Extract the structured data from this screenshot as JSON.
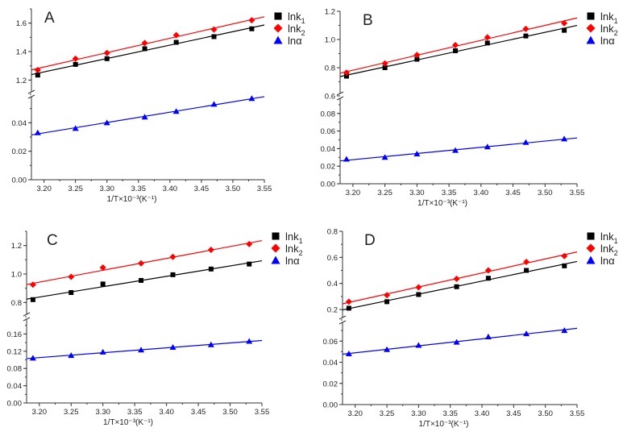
{
  "chart_data": [
    {
      "panel": "A",
      "type": "scatter",
      "xlabel": "1/T×10⁻³(K⁻¹)",
      "xlim": [
        3.18,
        3.55
      ],
      "xticks": [
        "3.20",
        "3.25",
        "3.30",
        "3.35",
        "3.40",
        "3.45",
        "3.50",
        "3.55"
      ],
      "y_break": true,
      "ylim_lower": [
        0,
        0.06
      ],
      "yticks_lower": [
        "0.00",
        "0.02",
        "0.04"
      ],
      "ylim_upper": [
        1.1,
        1.7
      ],
      "yticks_upper": [
        "1.2",
        "1.4",
        "1.6"
      ],
      "x": [
        3.19,
        3.25,
        3.3,
        3.36,
        3.41,
        3.47,
        3.53
      ],
      "series": [
        {
          "name": "lnk1",
          "label": "lnk",
          "sub": "1",
          "color": "#000000",
          "marker": "square",
          "segment": "upper",
          "values": [
            1.235,
            1.31,
            1.35,
            1.42,
            1.465,
            1.505,
            1.56
          ]
        },
        {
          "name": "lnk2",
          "label": "lnk",
          "sub": "2",
          "color": "#ff0000",
          "marker": "diamond",
          "segment": "upper",
          "values": [
            1.27,
            1.35,
            1.39,
            1.46,
            1.515,
            1.555,
            1.62
          ]
        },
        {
          "name": "lnα",
          "label": "lnα",
          "sub": "",
          "color": "#0000ff",
          "marker": "triangle",
          "segment": "lower",
          "values": [
            0.033,
            0.036,
            0.04,
            0.044,
            0.048,
            0.053,
            0.057
          ]
        }
      ],
      "fit": "linear",
      "legend": "right"
    },
    {
      "panel": "B",
      "type": "scatter",
      "xlabel": "1/T×10⁻³(K⁻¹)",
      "xlim": [
        3.18,
        3.55
      ],
      "xticks": [
        "3.20",
        "3.25",
        "3.30",
        "3.35",
        "3.40",
        "3.45",
        "3.50",
        "3.55"
      ],
      "y_break": true,
      "ylim_lower": [
        0,
        0.1
      ],
      "yticks_lower": [
        "0.00",
        "0.02",
        "0.04",
        "0.06",
        "0.08"
      ],
      "ylim_upper": [
        0.6,
        1.2
      ],
      "yticks_upper": [
        "0.6",
        "0.8",
        "1.0",
        "1.2"
      ],
      "x": [
        3.19,
        3.25,
        3.3,
        3.36,
        3.41,
        3.47,
        3.53
      ],
      "series": [
        {
          "name": "lnk1",
          "label": "lnk",
          "sub": "1",
          "color": "#000000",
          "marker": "square",
          "segment": "upper",
          "values": [
            0.74,
            0.8,
            0.86,
            0.92,
            0.975,
            1.025,
            1.065
          ]
        },
        {
          "name": "lnk2",
          "label": "lnk",
          "sub": "2",
          "color": "#ff0000",
          "marker": "diamond",
          "segment": "upper",
          "values": [
            0.765,
            0.83,
            0.89,
            0.96,
            1.015,
            1.075,
            1.115
          ]
        },
        {
          "name": "lnα",
          "label": "lnα",
          "sub": "",
          "color": "#0000ff",
          "marker": "triangle",
          "segment": "lower",
          "values": [
            0.028,
            0.03,
            0.034,
            0.038,
            0.042,
            0.047,
            0.051
          ]
        }
      ],
      "fit": "linear",
      "legend": "right"
    },
    {
      "panel": "C",
      "type": "scatter",
      "xlabel": "1/T×10⁻³(K⁻¹)",
      "xlim": [
        3.18,
        3.55
      ],
      "xticks": [
        "3.20",
        "3.25",
        "3.30",
        "3.35",
        "3.40",
        "3.45",
        "3.50",
        "3.55"
      ],
      "y_break": true,
      "ylim_lower": [
        0,
        0.2
      ],
      "yticks_lower": [
        "0.00",
        "0.04",
        "0.08",
        "0.12",
        "0.16"
      ],
      "ylim_upper": [
        0.7,
        1.3
      ],
      "yticks_upper": [
        "0.8",
        "1.0",
        "1.2"
      ],
      "x": [
        3.19,
        3.25,
        3.3,
        3.36,
        3.41,
        3.47,
        3.53
      ],
      "series": [
        {
          "name": "lnk1",
          "label": "lnk",
          "sub": "1",
          "color": "#000000",
          "marker": "square",
          "segment": "upper",
          "values": [
            0.82,
            0.87,
            0.93,
            0.955,
            0.995,
            1.035,
            1.07
          ]
        },
        {
          "name": "lnk2",
          "label": "lnk",
          "sub": "2",
          "color": "#ff0000",
          "marker": "diamond",
          "segment": "upper",
          "values": [
            0.925,
            0.98,
            1.045,
            1.075,
            1.12,
            1.17,
            1.21
          ]
        },
        {
          "name": "lnα",
          "label": "lnα",
          "sub": "",
          "color": "#0000ff",
          "marker": "triangle",
          "segment": "lower",
          "values": [
            0.104,
            0.11,
            0.118,
            0.123,
            0.129,
            0.135,
            0.143
          ]
        }
      ],
      "fit": "linear",
      "legend": "right"
    },
    {
      "panel": "D",
      "type": "scatter",
      "xlabel": "1/T×10⁻³(K⁻¹)",
      "xlim": [
        3.18,
        3.55
      ],
      "xticks": [
        "3.20",
        "3.25",
        "3.30",
        "3.35",
        "3.40",
        "3.45",
        "3.50",
        "3.55"
      ],
      "y_break": true,
      "ylim_lower": [
        0,
        0.08
      ],
      "yticks_lower": [
        "0.00",
        "0.02",
        "0.04",
        "0.06"
      ],
      "ylim_upper": [
        0.12,
        0.8
      ],
      "yticks_upper": [
        "0.2",
        "0.4",
        "0.6",
        "0.8"
      ],
      "x": [
        3.19,
        3.25,
        3.3,
        3.36,
        3.41,
        3.47,
        3.53
      ],
      "series": [
        {
          "name": "lnk1",
          "label": "lnk",
          "sub": "1",
          "color": "#000000",
          "marker": "square",
          "segment": "upper",
          "values": [
            0.21,
            0.26,
            0.315,
            0.375,
            0.44,
            0.5,
            0.535
          ]
        },
        {
          "name": "lnk2",
          "label": "lnk",
          "sub": "2",
          "color": "#ff0000",
          "marker": "diamond",
          "segment": "upper",
          "values": [
            0.26,
            0.31,
            0.37,
            0.435,
            0.5,
            0.565,
            0.61
          ]
        },
        {
          "name": "lnα",
          "label": "lnα",
          "sub": "",
          "color": "#0000ff",
          "marker": "triangle",
          "segment": "lower",
          "values": [
            0.048,
            0.052,
            0.056,
            0.059,
            0.064,
            0.067,
            0.07
          ]
        }
      ],
      "fit": "linear",
      "legend": "right"
    }
  ]
}
